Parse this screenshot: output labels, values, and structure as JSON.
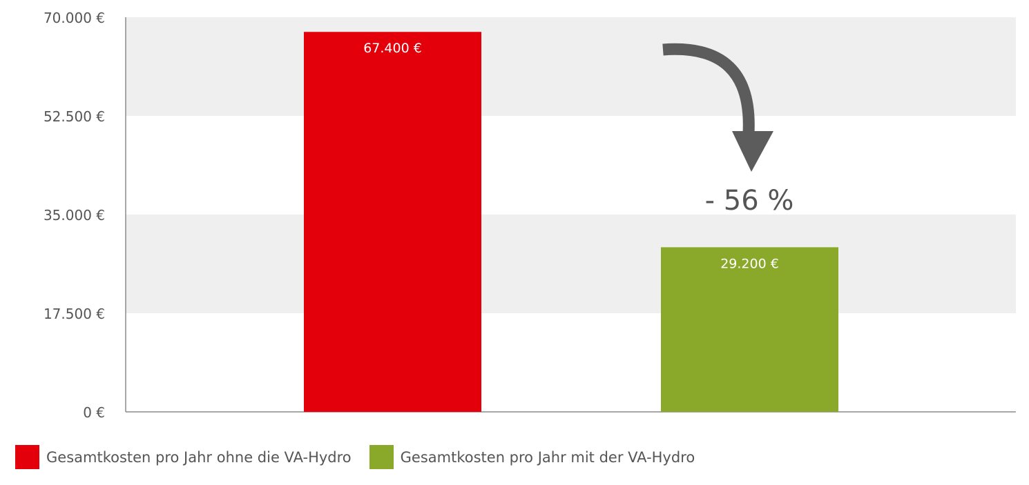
{
  "chart_data": {
    "type": "bar",
    "categories": [
      "Gesamtkosten pro Jahr ohne die VA-Hydro",
      "Gesamtkosten pro Jahr mit der VA-Hydro"
    ],
    "values": [
      67400,
      29200
    ],
    "value_labels": [
      "67.400 €",
      "29.200 €"
    ],
    "colors": [
      "#e3000b",
      "#8aa82a"
    ],
    "ylim": [
      0,
      70000
    ],
    "yticks": [
      0,
      17500,
      35000,
      52500,
      70000
    ],
    "ytick_labels": [
      "0 €",
      "17.500 €",
      "35.000 €",
      "52.500 €",
      "70.000 €"
    ],
    "grid": "alternating bands",
    "band_color": "#efefef",
    "legend_position": "bottom-left",
    "annotation": {
      "text": "- 56 %",
      "arrow_color": "#5c5c5c"
    }
  }
}
